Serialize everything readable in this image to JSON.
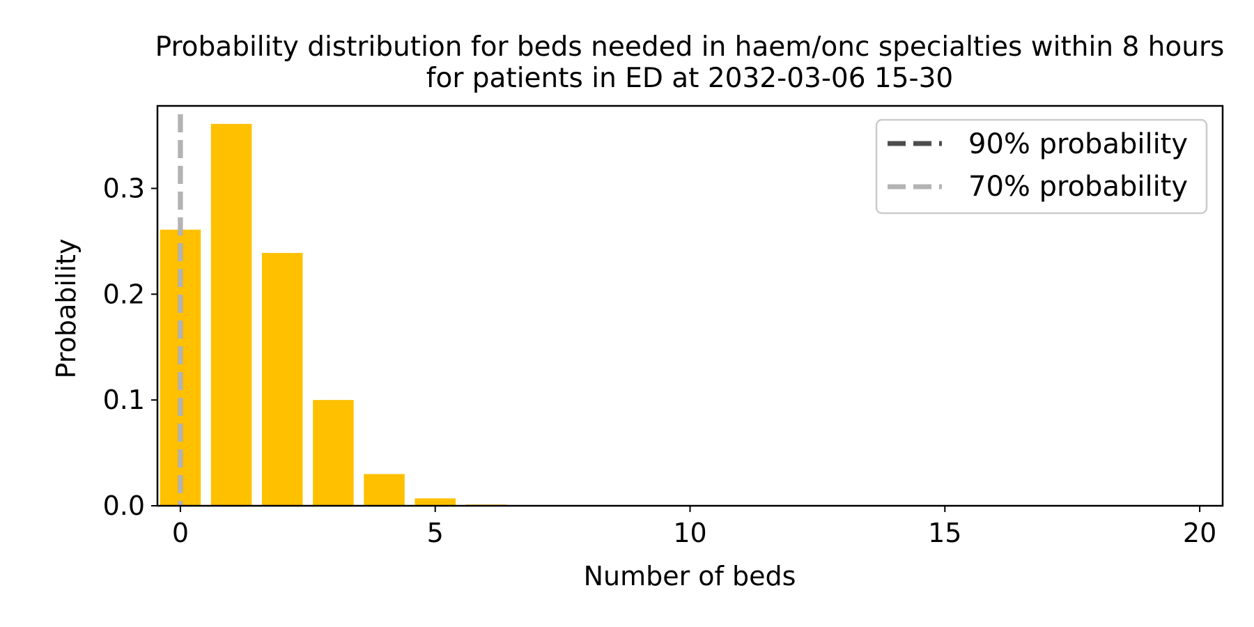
{
  "chart_data": {
    "type": "bar",
    "title_lines": [
      "Probability distribution for beds needed in haem/onc specialties within 8 hours",
      "for patients in ED at 2032-03-06 15-30"
    ],
    "xlabel": "Number of beds",
    "ylabel": "Probability",
    "x": [
      0,
      1,
      2,
      3,
      4,
      5,
      6,
      7,
      8,
      9,
      10,
      11,
      12,
      13,
      14,
      15,
      16,
      17,
      18,
      19,
      20
    ],
    "values": [
      0.261,
      0.361,
      0.239,
      0.1,
      0.03,
      0.007,
      0.0012,
      0.0002,
      0,
      0,
      0,
      0,
      0,
      0,
      0,
      0,
      0,
      0,
      0,
      0,
      0
    ],
    "bar_color": "#ffc000",
    "xlim": [
      -0.45,
      20.45
    ],
    "ylim": [
      0,
      0.378
    ],
    "xticks": [
      0,
      5,
      10,
      15,
      20
    ],
    "xtick_labels": [
      "0",
      "5",
      "10",
      "15",
      "20"
    ],
    "yticks": [
      0.0,
      0.1,
      0.2,
      0.3
    ],
    "ytick_labels": [
      "0.0",
      "0.1",
      "0.2",
      "0.3"
    ],
    "grid": false,
    "vlines": [
      {
        "name": "90% probability",
        "x": 0,
        "color": "#4d4d4d"
      },
      {
        "name": "70% probability",
        "x": 0,
        "color": "#b3b3b3"
      }
    ],
    "legend": {
      "placement": "top-right",
      "entries": [
        "90% probability",
        "70% probability"
      ]
    }
  }
}
